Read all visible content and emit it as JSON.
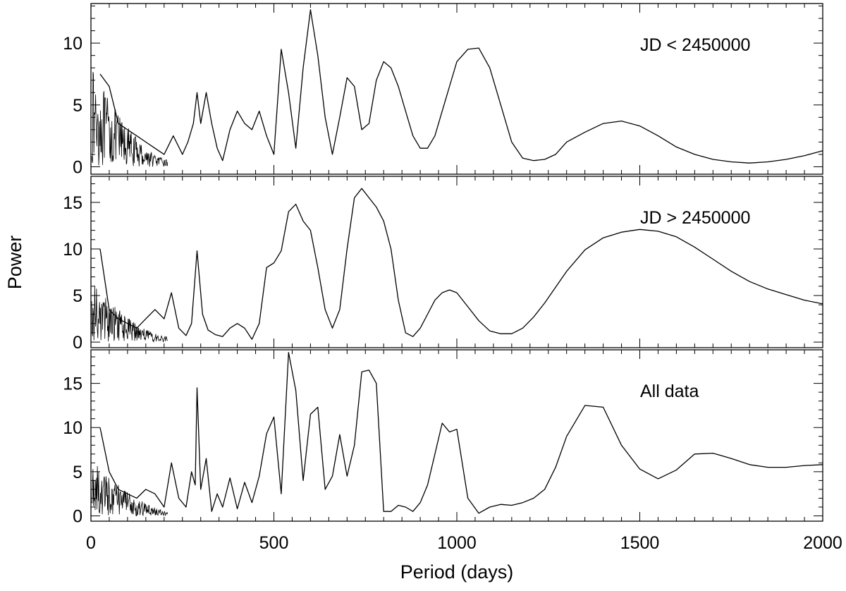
{
  "chart_data": {
    "type": "line",
    "xlabel": "Period (days)",
    "ylabel": "Power",
    "xlim": [
      0,
      2000
    ],
    "xticks": [
      0,
      500,
      1000,
      1500,
      2000
    ],
    "xtick_labels": [
      "0",
      "500",
      "1000",
      "1500",
      "2000"
    ],
    "line_color": "#000000",
    "grid": false,
    "panels": [
      {
        "annotation": "JD < 2450000",
        "ylim": [
          -0.6,
          13.2
        ],
        "yticks": [
          0,
          5,
          10
        ],
        "ytick_labels": [
          "0",
          "5",
          "10"
        ],
        "x": [
          25,
          50,
          75,
          100,
          125,
          150,
          175,
          200,
          225,
          250,
          265,
          280,
          290,
          300,
          315,
          330,
          345,
          360,
          380,
          400,
          420,
          440,
          460,
          480,
          500,
          520,
          540,
          560,
          580,
          600,
          620,
          640,
          660,
          680,
          700,
          720,
          740,
          760,
          780,
          800,
          820,
          840,
          860,
          880,
          900,
          920,
          940,
          960,
          980,
          1000,
          1030,
          1060,
          1090,
          1120,
          1150,
          1180,
          1210,
          1240,
          1270,
          1300,
          1350,
          1400,
          1450,
          1500,
          1550,
          1600,
          1650,
          1700,
          1750,
          1800,
          1850,
          1900,
          1950,
          2000
        ],
        "y": [
          7.5,
          6.5,
          3.5,
          3.0,
          2.5,
          2.0,
          1.5,
          1.0,
          2.5,
          1.0,
          2.0,
          3.5,
          6.0,
          3.5,
          6.0,
          3.5,
          1.5,
          0.5,
          3.0,
          4.5,
          3.5,
          3.0,
          4.5,
          2.5,
          1.0,
          9.5,
          6.0,
          1.5,
          8.0,
          12.7,
          9.0,
          4.0,
          1.0,
          4.0,
          7.2,
          6.5,
          3.0,
          3.5,
          7.0,
          8.5,
          8.0,
          6.5,
          4.5,
          2.5,
          1.5,
          1.5,
          2.5,
          4.5,
          6.5,
          8.5,
          9.5,
          9.6,
          8.0,
          5.0,
          2.0,
          0.7,
          0.5,
          0.6,
          1.0,
          2.0,
          2.8,
          3.5,
          3.7,
          3.3,
          2.5,
          1.6,
          1.0,
          0.6,
          0.4,
          0.3,
          0.4,
          0.6,
          0.9,
          1.3
        ],
        "noise": {
          "x_range": [
            0,
            210
          ],
          "amplitude": 7.5
        }
      },
      {
        "annotation": "JD > 2450000",
        "ylim": [
          -0.6,
          17.8
        ],
        "yticks": [
          0,
          5,
          10,
          15
        ],
        "ytick_labels": [
          "0",
          "5",
          "10",
          "15"
        ],
        "x": [
          25,
          50,
          75,
          100,
          125,
          150,
          175,
          200,
          220,
          240,
          260,
          275,
          290,
          305,
          320,
          340,
          360,
          380,
          400,
          420,
          440,
          460,
          480,
          500,
          520,
          540,
          560,
          580,
          600,
          620,
          640,
          660,
          680,
          700,
          720,
          740,
          760,
          780,
          800,
          820,
          840,
          860,
          880,
          900,
          920,
          940,
          960,
          980,
          1000,
          1030,
          1060,
          1090,
          1120,
          1150,
          1180,
          1210,
          1240,
          1270,
          1300,
          1350,
          1400,
          1450,
          1500,
          1550,
          1600,
          1650,
          1700,
          1750,
          1800,
          1850,
          1900,
          1950,
          2000
        ],
        "y": [
          10.0,
          3.5,
          2.5,
          2.0,
          1.5,
          2.5,
          3.5,
          2.5,
          5.3,
          1.5,
          0.7,
          2.0,
          9.8,
          3.0,
          1.3,
          0.8,
          0.6,
          1.5,
          2.0,
          1.5,
          0.3,
          2.0,
          8.0,
          8.5,
          9.8,
          14.0,
          14.8,
          13.0,
          12.0,
          8.0,
          3.5,
          1.5,
          3.5,
          10.0,
          15.5,
          16.5,
          15.5,
          14.5,
          13.0,
          10.0,
          4.5,
          1.0,
          0.6,
          1.5,
          3.0,
          4.5,
          5.3,
          5.6,
          5.3,
          3.8,
          2.3,
          1.2,
          0.9,
          0.9,
          1.5,
          2.7,
          4.2,
          5.9,
          7.6,
          9.9,
          11.2,
          11.8,
          12.1,
          11.9,
          11.3,
          10.2,
          8.9,
          7.6,
          6.5,
          5.7,
          5.1,
          4.5,
          4.1
        ],
        "noise": {
          "x_range": [
            0,
            210
          ],
          "amplitude": 6.0
        }
      },
      {
        "annotation": "All data",
        "ylim": [
          -0.6,
          18.8
        ],
        "yticks": [
          0,
          5,
          10,
          15
        ],
        "ytick_labels": [
          "0",
          "5",
          "10",
          "15"
        ],
        "x": [
          25,
          50,
          75,
          100,
          125,
          150,
          175,
          200,
          220,
          240,
          260,
          275,
          285,
          290,
          300,
          315,
          330,
          345,
          360,
          380,
          400,
          420,
          440,
          460,
          480,
          500,
          520,
          540,
          560,
          580,
          600,
          620,
          640,
          660,
          680,
          700,
          720,
          740,
          760,
          780,
          800,
          820,
          840,
          860,
          880,
          900,
          920,
          940,
          960,
          980,
          1000,
          1030,
          1060,
          1090,
          1120,
          1150,
          1180,
          1210,
          1240,
          1270,
          1300,
          1350,
          1400,
          1450,
          1500,
          1550,
          1600,
          1650,
          1700,
          1750,
          1800,
          1850,
          1900,
          1950,
          2000
        ],
        "y": [
          10.0,
          5.0,
          3.0,
          2.5,
          2.0,
          3.0,
          2.5,
          1.0,
          6.0,
          2.0,
          1.0,
          5.0,
          3.5,
          14.5,
          3.0,
          6.5,
          0.5,
          2.5,
          1.0,
          4.3,
          0.8,
          3.8,
          1.5,
          4.5,
          9.3,
          11.2,
          2.5,
          18.5,
          14.2,
          4.0,
          11.5,
          12.3,
          3.0,
          4.5,
          9.2,
          4.5,
          8.0,
          16.3,
          16.5,
          15.0,
          0.5,
          0.5,
          1.2,
          1.0,
          0.5,
          1.5,
          3.5,
          7.0,
          10.5,
          9.5,
          9.8,
          2.0,
          0.3,
          1.0,
          1.3,
          1.2,
          1.5,
          2.0,
          3.0,
          5.5,
          9.0,
          12.5,
          12.3,
          8.0,
          5.3,
          4.2,
          5.2,
          7.0,
          7.1,
          6.5,
          5.8,
          5.5,
          5.5,
          5.7,
          5.8
        ],
        "noise": {
          "x_range": [
            0,
            210
          ],
          "amplitude": 6.0
        }
      }
    ]
  }
}
